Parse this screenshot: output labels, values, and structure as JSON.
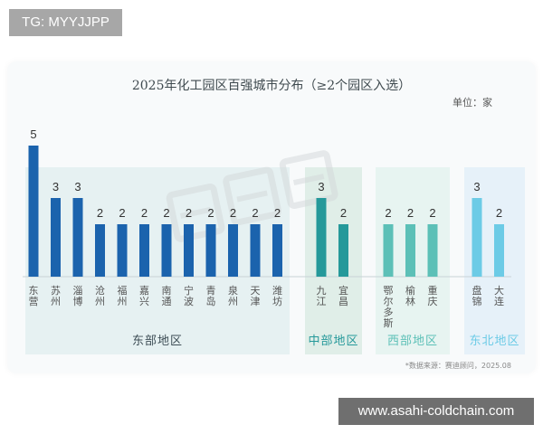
{
  "badges": {
    "top_left": "TG: MYYJJPP",
    "bottom_right": "www.asahi-coldchain.com"
  },
  "chart_data": {
    "type": "bar",
    "title": "2025年化工园区百强城市分布（≥2个园区入选）",
    "unit_label": "单位：家",
    "source": "*数据来源：赛迪顾问，2025.08",
    "watermark": "满天星",
    "groups": [
      {
        "name": "东部地区",
        "color": "#1b63ad",
        "bg": "#e3eef0",
        "categories": [
          "东营",
          "苏州",
          "淄博",
          "沧州",
          "福州",
          "嘉兴",
          "南通",
          "宁波",
          "青岛",
          "泉州",
          "天津",
          "潍坊"
        ],
        "values": [
          5,
          3,
          3,
          2,
          2,
          2,
          2,
          2,
          2,
          2,
          2,
          2
        ]
      },
      {
        "name": "中部地区",
        "color": "#25999a",
        "bg": "#dcebe4",
        "categories": [
          "九江",
          "宜昌"
        ],
        "values": [
          3,
          2
        ]
      },
      {
        "name": "西部地区",
        "color": "#5cc0b7",
        "bg": "#e4f2ef",
        "categories": [
          "鄂尔多斯",
          "榆林",
          "重庆"
        ],
        "values": [
          2,
          2,
          2
        ]
      },
      {
        "name": "东北地区",
        "color": "#6ccbe6",
        "bg": "#e3eef8",
        "categories": [
          "盘锦",
          "大连"
        ],
        "values": [
          3,
          2
        ]
      }
    ],
    "ylim": [
      0,
      5
    ],
    "grid": false,
    "legend": "none"
  }
}
